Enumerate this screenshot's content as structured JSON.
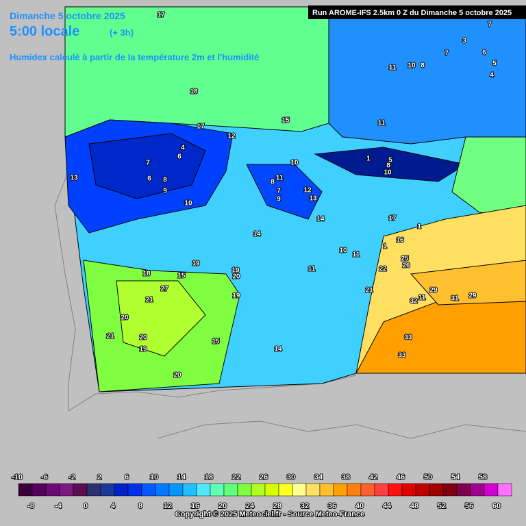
{
  "header": {
    "date": "Dimanche 5 octobre 2025",
    "time": "5:00 locale",
    "lead": "(+ 3h)",
    "subtitle": "Humidex calculé à partir de la température 2m et l'humidité",
    "run": "Run AROME-IFS 2.5km 0 Z du Dimanche 5 octobre 2025"
  },
  "map_labels": [
    17,
    18,
    15,
    12,
    17,
    7,
    3,
    7,
    6,
    5,
    4,
    11,
    10,
    8,
    11,
    4,
    6,
    7,
    8,
    9,
    6,
    13,
    10,
    10,
    11,
    8,
    7,
    9,
    12,
    13,
    14,
    1,
    5,
    8,
    10,
    17,
    1,
    14,
    10,
    11,
    16,
    1,
    25,
    26,
    22,
    11,
    19,
    18,
    15,
    19,
    20,
    27,
    21,
    19,
    21,
    32,
    11,
    29,
    31,
    29,
    20,
    21,
    20,
    19,
    15,
    14,
    33,
    33,
    20
  ],
  "legend": {
    "ticks": [
      -10,
      -8,
      -6,
      -4,
      -2,
      0,
      2,
      4,
      6,
      8,
      10,
      12,
      14,
      16,
      18,
      20,
      22,
      24,
      26,
      28,
      30,
      32,
      34,
      36,
      38,
      40,
      42,
      44,
      46,
      48,
      50,
      52,
      54,
      56,
      58,
      60
    ],
    "colors": [
      "#3a003a",
      "#55005a",
      "#6e0a78",
      "#7a1a80",
      "#5a1050",
      "#2a3070",
      "#1a3a9a",
      "#0020c8",
      "#0030e8",
      "#0058ff",
      "#0078ff",
      "#0098ff",
      "#20c0ff",
      "#50e8ff",
      "#60ffb8",
      "#60ff80",
      "#80ff40",
      "#b0ff20",
      "#d8ff00",
      "#ffff20",
      "#ffff90",
      "#ffe060",
      "#ffc030",
      "#ffa000",
      "#ff8010",
      "#ff6030",
      "#ff4040",
      "#ff1010",
      "#e00000",
      "#c00000",
      "#a00000",
      "#800010",
      "#800050",
      "#a00090",
      "#d000d0",
      "#ff70ff"
    ]
  },
  "footer": {
    "copyright": "Copyright © 2025 Meteociel.fr - Source Meteo-France"
  }
}
